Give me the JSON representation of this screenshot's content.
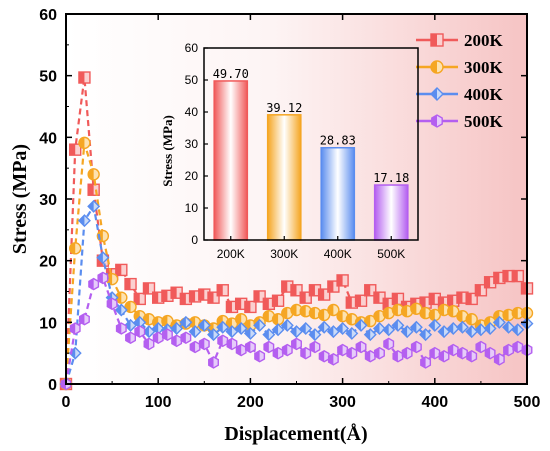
{
  "chart_data": [
    {
      "type": "line",
      "xlabel": "Displacement(Å)",
      "ylabel": "Stress (MPa)",
      "xlim": [
        0,
        500
      ],
      "ylim": [
        0,
        60
      ],
      "xticks": [
        0,
        100,
        200,
        300,
        400,
        500
      ],
      "yticks": [
        0,
        10,
        20,
        30,
        40,
        50,
        60
      ],
      "grid": false,
      "legend_position": "top-right",
      "series": [
        {
          "name": "200K",
          "color": "#f05a5a",
          "marker": "square",
          "x": [
            0,
            10,
            20,
            30,
            40,
            50,
            60,
            70,
            80,
            90,
            100,
            110,
            120,
            130,
            140,
            150,
            160,
            170,
            180,
            190,
            200,
            210,
            220,
            230,
            240,
            250,
            260,
            270,
            280,
            290,
            300,
            310,
            320,
            330,
            340,
            350,
            360,
            370,
            380,
            390,
            400,
            410,
            420,
            430,
            440,
            450,
            460,
            470,
            480,
            490,
            500
          ],
          "y": [
            0,
            38,
            49.7,
            31.5,
            20,
            17.8,
            18.5,
            16.2,
            13.8,
            15.5,
            14,
            14.3,
            14.8,
            13.8,
            14.2,
            14.5,
            14,
            15.2,
            12.5,
            13,
            12.5,
            14.2,
            13,
            13.5,
            15.8,
            15.2,
            14,
            15.2,
            14.5,
            15.8,
            16.8,
            13.2,
            13.5,
            15.2,
            14,
            13,
            13.8,
            12.5,
            13,
            13.2,
            13.8,
            13.2,
            13.5,
            14,
            13.8,
            15.2,
            16.5,
            17.2,
            17.5,
            17.5,
            15.5
          ]
        },
        {
          "name": "300K",
          "color": "#f5a623",
          "marker": "circle",
          "x": [
            0,
            10,
            20,
            30,
            40,
            50,
            60,
            70,
            80,
            90,
            100,
            110,
            120,
            130,
            140,
            150,
            160,
            170,
            180,
            190,
            200,
            210,
            220,
            230,
            240,
            250,
            260,
            270,
            280,
            290,
            300,
            310,
            320,
            330,
            340,
            350,
            360,
            370,
            380,
            390,
            400,
            410,
            420,
            430,
            440,
            450,
            460,
            470,
            480,
            490,
            500
          ],
          "y": [
            0,
            22,
            39.1,
            34,
            24,
            17,
            14,
            12.5,
            11,
            10.5,
            10,
            10.2,
            9.5,
            9.8,
            10,
            9.5,
            9,
            10.2,
            9.8,
            10.5,
            9.5,
            10,
            11,
            10.5,
            11.5,
            12,
            11.8,
            11.5,
            11.2,
            12,
            11,
            10.5,
            10,
            10.2,
            11,
            11.5,
            12,
            11.8,
            12.2,
            11.5,
            11.2,
            12,
            11.8,
            11,
            10.5,
            9.5,
            10,
            11,
            11.2,
            11.5,
            11.5
          ]
        },
        {
          "name": "400K",
          "color": "#5b8def",
          "marker": "diamond",
          "x": [
            0,
            10,
            20,
            30,
            40,
            50,
            60,
            70,
            80,
            90,
            100,
            110,
            120,
            130,
            140,
            150,
            160,
            170,
            180,
            190,
            200,
            210,
            220,
            230,
            240,
            250,
            260,
            270,
            280,
            290,
            300,
            310,
            320,
            330,
            340,
            350,
            360,
            370,
            380,
            390,
            400,
            410,
            420,
            430,
            440,
            450,
            460,
            470,
            480,
            490,
            500
          ],
          "y": [
            0,
            5,
            26.5,
            28.8,
            20.5,
            14,
            12,
            9.5,
            10,
            8.5,
            9,
            8.8,
            9,
            10,
            8.5,
            9.5,
            8,
            9.2,
            8.5,
            9,
            8.2,
            9.5,
            8,
            8.8,
            9.5,
            8.5,
            9,
            8,
            9.2,
            8.5,
            9,
            8.2,
            9.5,
            8,
            9,
            8.8,
            9.5,
            8.5,
            9.2,
            8,
            9.5,
            8.5,
            9,
            9.2,
            8.5,
            8.8,
            9,
            10,
            9.2,
            8.8,
            9.8
          ]
        },
        {
          "name": "500K",
          "color": "#b45ff0",
          "marker": "hexagon",
          "x": [
            0,
            10,
            20,
            30,
            40,
            50,
            60,
            70,
            80,
            90,
            100,
            110,
            120,
            130,
            140,
            150,
            160,
            170,
            180,
            190,
            200,
            210,
            220,
            230,
            240,
            250,
            260,
            270,
            280,
            290,
            300,
            310,
            320,
            330,
            340,
            350,
            360,
            370,
            380,
            390,
            400,
            410,
            420,
            430,
            440,
            450,
            460,
            470,
            480,
            490,
            500
          ],
          "y": [
            0,
            9,
            10.5,
            16.2,
            17.2,
            13,
            9,
            7.5,
            8.5,
            6.5,
            7.5,
            8,
            7,
            7.5,
            6,
            6.5,
            3.5,
            7,
            6.5,
            5.5,
            6,
            4.5,
            6,
            5,
            5.5,
            6.5,
            5,
            6,
            4.5,
            4,
            5.5,
            5,
            6,
            4.5,
            5,
            6.5,
            4.5,
            5,
            6,
            3.5,
            5,
            4.5,
            5.5,
            5,
            4.5,
            6,
            5,
            4,
            5.5,
            6,
            5.5
          ]
        }
      ]
    },
    {
      "type": "bar",
      "ylabel": "Stress (MPa)",
      "ylim": [
        0,
        60
      ],
      "yticks": [
        0,
        10,
        20,
        30,
        40,
        50,
        60
      ],
      "categories": [
        "200K",
        "300K",
        "400K",
        "500K"
      ],
      "values": [
        49.7,
        39.12,
        28.83,
        17.18
      ],
      "value_labels": [
        "49.70",
        "39.12",
        "28.83",
        "17.18"
      ],
      "colors": [
        "#f05a5a",
        "#f5a623",
        "#5b8def",
        "#b45ff0"
      ]
    }
  ]
}
